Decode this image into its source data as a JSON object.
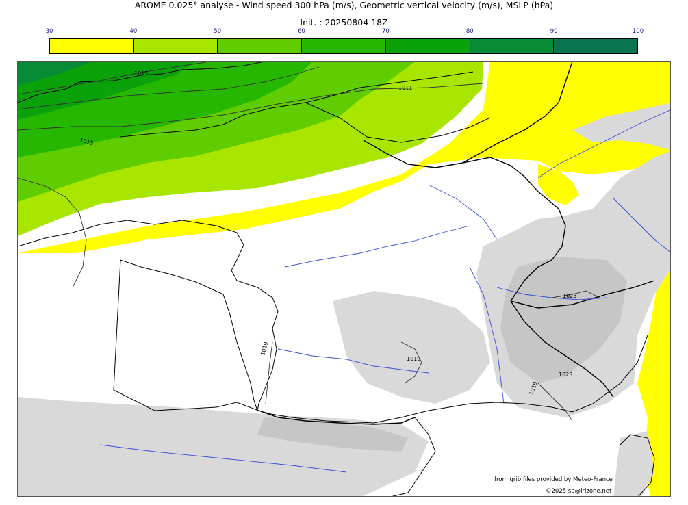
{
  "title": "AROME 0.025° analyse - Wind speed 300 hPa (m/s), Geometric vertical velocity (m/s), MSLP (hPa)",
  "init": "Init. : 20250804 18Z",
  "colorbar": {
    "ticks": [
      "30",
      "40",
      "50",
      "60",
      "70",
      "80",
      "90",
      "100"
    ],
    "colors": [
      "#ffff00",
      "#a8e600",
      "#5fcd00",
      "#26b800",
      "#0aa10a",
      "#078a35",
      "#087550"
    ]
  },
  "isobar_labels": {
    "l1": "1015",
    "l2": "1011",
    "l3": "1015",
    "l4": "1019",
    "l5": "1019",
    "l6": "1023",
    "l7": "1023",
    "l8": "1019"
  },
  "credits": {
    "line1": "from grib files provided by Meteo-France",
    "line2": "©2025 sb@irizone.net"
  }
}
